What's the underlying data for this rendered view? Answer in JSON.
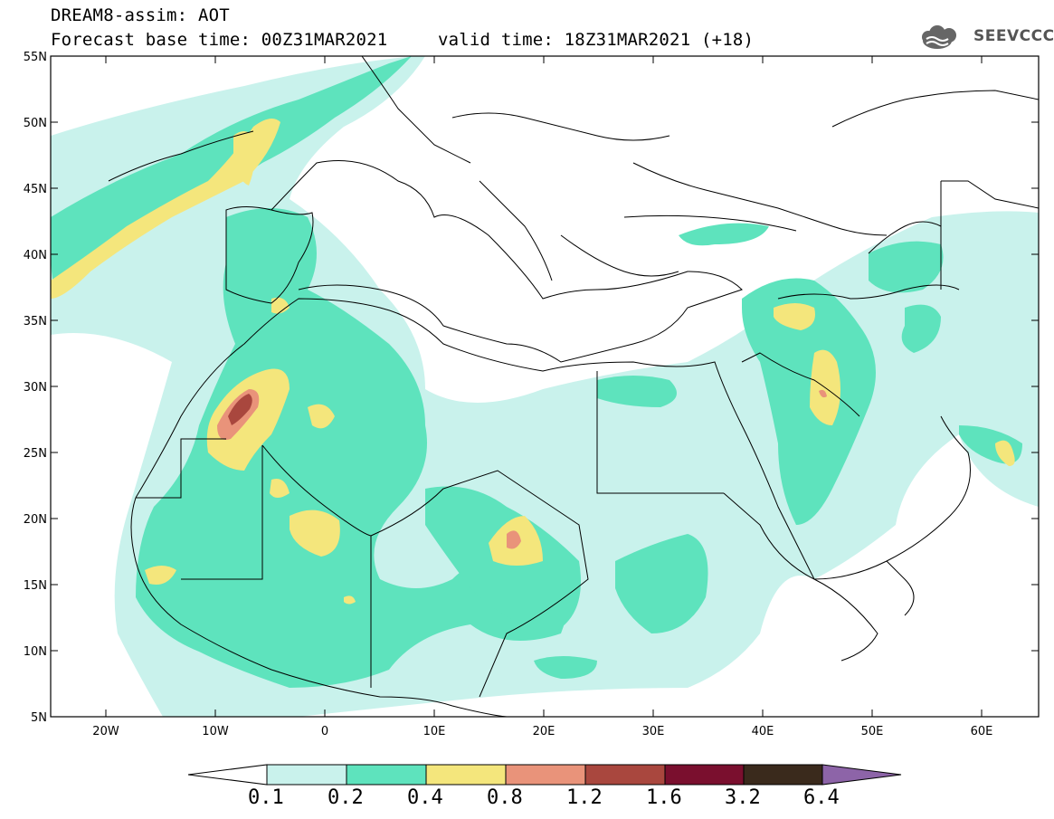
{
  "title": {
    "line1": "DREAM8-assim: AOT",
    "line2": "Forecast base time: 00Z31MAR2021",
    "valid": "valid time: 18Z31MAR2021 (+18)"
  },
  "logo": {
    "text": "SEEVCCC",
    "icon": "cloud-icon"
  },
  "map": {
    "region": "North Africa, Europe and Middle East",
    "lon_range": [
      -25,
      65
    ],
    "lat_range": [
      5,
      55
    ],
    "lat_ticks": [
      "55N",
      "50N",
      "45N",
      "40N",
      "35N",
      "30N",
      "25N",
      "20N",
      "15N",
      "10N",
      "5N"
    ],
    "lon_ticks": [
      "20W",
      "10W",
      "0",
      "10E",
      "20E",
      "30E",
      "40E",
      "50E",
      "60E"
    ]
  },
  "colorbar": {
    "labels": [
      "0.1",
      "0.2",
      "0.4",
      "0.8",
      "1.2",
      "1.6",
      "3.2",
      "6.4"
    ],
    "colors": [
      "#ffffff",
      "#c9f2ec",
      "#5ee3bd",
      "#f4e67c",
      "#e9937a",
      "#a9473e",
      "#7a0f2e",
      "#3a2a1c",
      "#8d64a8"
    ]
  }
}
